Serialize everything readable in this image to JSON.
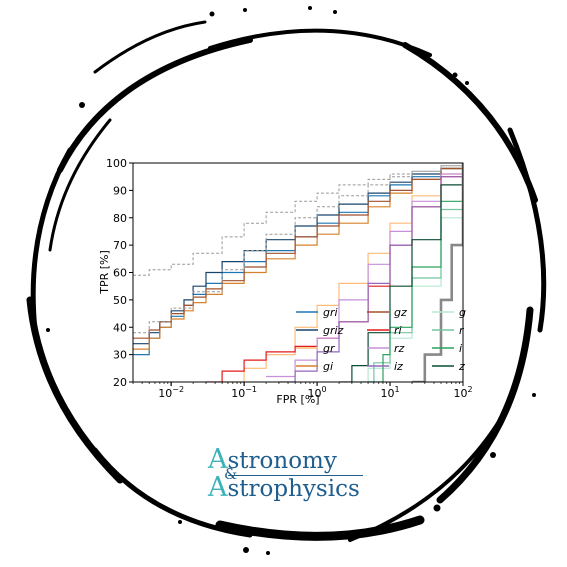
{
  "logo": {
    "line1_initial": "A",
    "line1_rest": "stronomy",
    "ampersand": "&",
    "line2_initial": "A",
    "line2_rest": "strophysics"
  },
  "colors": {
    "gri": "#1f77b4",
    "griz": "#17456e",
    "gr": "#ffbb78",
    "gi": "#d6812a",
    "gz": "#a0522d",
    "ri": "#e31a1c",
    "rz": "#c78fdb",
    "iz": "#9467bd",
    "g": "#b5e8d0",
    "r": "#74c69d",
    "i": "#2ca25f",
    "z": "#0b4d32",
    "reference": "#999999",
    "random": "#888888"
  },
  "chart_data": {
    "type": "line",
    "title": "",
    "xlabel": "FPR [%]",
    "ylabel": "TPR [%]",
    "xscale": "log",
    "xlim": [
      0.003,
      100
    ],
    "ylim": [
      20,
      100
    ],
    "xticks": [
      {
        "value": 0.01,
        "base": "10",
        "exp": "−2"
      },
      {
        "value": 0.1,
        "base": "10",
        "exp": "−1"
      },
      {
        "value": 1,
        "base": "10",
        "exp": "0"
      },
      {
        "value": 10,
        "base": "10",
        "exp": "1"
      },
      {
        "value": 100,
        "base": "10",
        "exp": "2"
      }
    ],
    "yticks": [
      20,
      30,
      40,
      50,
      60,
      70,
      80,
      90,
      100
    ],
    "legend_position": "bottom-right",
    "legend_columns": [
      [
        "gri",
        "griz",
        "gr",
        "gi"
      ],
      [
        "gz",
        "ri",
        "rz",
        "iz"
      ],
      [
        "g",
        "r",
        "i",
        "z"
      ]
    ],
    "series": [
      {
        "name": "gri",
        "x": [
          0.003,
          0.005,
          0.007,
          0.01,
          0.015,
          0.02,
          0.03,
          0.05,
          0.1,
          0.2,
          0.5,
          1,
          2,
          5,
          10,
          20,
          50,
          100
        ],
        "y": [
          30,
          36,
          40,
          44,
          48,
          52,
          56,
          60,
          64,
          68,
          73,
          78,
          82,
          88,
          92,
          95,
          98,
          100
        ]
      },
      {
        "name": "griz",
        "x": [
          0.003,
          0.005,
          0.007,
          0.01,
          0.015,
          0.02,
          0.03,
          0.05,
          0.1,
          0.2,
          0.5,
          1,
          2,
          5,
          10,
          20,
          50,
          100
        ],
        "y": [
          34,
          38,
          42,
          46,
          50,
          55,
          60,
          64,
          68,
          72,
          77,
          81,
          85,
          89,
          93,
          96,
          98,
          100
        ]
      },
      {
        "name": "gr",
        "x": [
          0.05,
          0.1,
          0.2,
          0.5,
          1,
          2,
          5,
          10,
          20,
          50,
          100
        ],
        "y": [
          20,
          25,
          30,
          40,
          48,
          56,
          67,
          78,
          88,
          96,
          100
        ]
      },
      {
        "name": "gi",
        "x": [
          0.003,
          0.005,
          0.007,
          0.01,
          0.015,
          0.02,
          0.03,
          0.05,
          0.1,
          0.2,
          0.5,
          1,
          2,
          5,
          10,
          20,
          50,
          100
        ],
        "y": [
          32,
          36,
          40,
          43,
          46,
          49,
          52,
          56,
          60,
          65,
          70,
          74,
          78,
          84,
          89,
          94,
          98,
          100
        ]
      },
      {
        "name": "gz",
        "x": [
          0.003,
          0.005,
          0.007,
          0.01,
          0.015,
          0.02,
          0.03,
          0.05,
          0.1,
          0.2,
          0.5,
          1,
          2,
          5,
          10,
          20,
          50,
          100
        ],
        "y": [
          36,
          39,
          42,
          45,
          48,
          51,
          54,
          57,
          62,
          67,
          73,
          77,
          81,
          86,
          90,
          94,
          98,
          100
        ]
      },
      {
        "name": "ri",
        "x": [
          0.03,
          0.05,
          0.1,
          0.2,
          0.5,
          1,
          2,
          5,
          10,
          20,
          50,
          100
        ],
        "y": [
          20,
          24,
          28,
          31,
          33,
          36,
          42,
          55,
          70,
          84,
          95,
          100
        ]
      },
      {
        "name": "rz",
        "x": [
          0.2,
          0.5,
          1,
          2,
          5,
          10,
          20,
          50,
          100
        ],
        "y": [
          22,
          28,
          36,
          50,
          63,
          75,
          86,
          96,
          100
        ]
      },
      {
        "name": "iz",
        "x": [
          0.3,
          0.5,
          1,
          2,
          5,
          10,
          20,
          50,
          100
        ],
        "y": [
          20,
          24,
          31,
          42,
          56,
          70,
          84,
          95,
          100
        ]
      },
      {
        "name": "g",
        "x": [
          3,
          5,
          10,
          20,
          50,
          100
        ],
        "y": [
          20,
          25,
          36,
          55,
          80,
          100
        ]
      },
      {
        "name": "r",
        "x": [
          4,
          6,
          10,
          20,
          50,
          100
        ],
        "y": [
          20,
          27,
          38,
          58,
          83,
          100
        ]
      },
      {
        "name": "i",
        "x": [
          5,
          8,
          10,
          20,
          50,
          100
        ],
        "y": [
          20,
          30,
          40,
          62,
          86,
          100
        ]
      },
      {
        "name": "z",
        "x": [
          2,
          3,
          5,
          10,
          20,
          50,
          100
        ],
        "y": [
          20,
          26,
          38,
          55,
          72,
          92,
          100
        ]
      },
      {
        "x": [
          0.003,
          0.005,
          0.01,
          0.02,
          0.05,
          0.1,
          0.2,
          0.5,
          1,
          2,
          5,
          10,
          20,
          50,
          100
        ],
        "y": [
          59,
          61,
          63,
          67,
          73,
          78,
          82,
          86,
          89,
          92,
          94,
          96,
          97,
          99,
          100
        ],
        "style": "dashed"
      },
      {
        "x": [
          0.003,
          0.005,
          0.01,
          0.02,
          0.05,
          0.1,
          0.2,
          0.5,
          1,
          2,
          5,
          10,
          20,
          50,
          100
        ],
        "y": [
          38,
          42,
          47,
          53,
          61,
          68,
          74,
          80,
          84,
          88,
          92,
          95,
          97,
          99,
          100
        ],
        "style": "dashed"
      },
      {
        "x": [
          20,
          30,
          50,
          70,
          100
        ],
        "y": [
          20,
          30,
          50,
          70,
          100
        ],
        "style": "thick-gray"
      }
    ]
  }
}
